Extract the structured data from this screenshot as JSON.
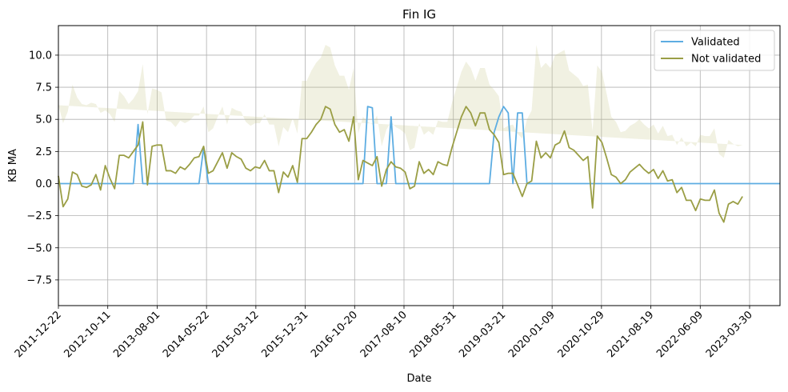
{
  "chart_data": {
    "type": "line",
    "title": "Fin IG",
    "xlabel": "Date",
    "ylabel": "KB MA",
    "ylim": [
      -9.5,
      12.3
    ],
    "grid": true,
    "legend_position": "top-right",
    "x_tick_labels": [
      "2011-12-22",
      "2012-10-11",
      "2013-08-01",
      "2014-05-22",
      "2015-03-12",
      "2015-12-31",
      "2016-10-20",
      "2017-08-10",
      "2018-05-31",
      "2019-03-21",
      "2020-01-09",
      "2020-10-29",
      "2021-08-19",
      "2022-06-09",
      "2023-03-30"
    ],
    "y_ticks": [
      -7.5,
      -5.0,
      -2.5,
      0.0,
      2.5,
      5.0,
      7.5,
      10.0
    ],
    "y_tick_labels": [
      "−7.5",
      "−5.0",
      "−2.5",
      "0.0",
      "2.5",
      "5.0",
      "7.5",
      "10.0"
    ],
    "series": [
      {
        "name": "Validated",
        "color": "#5dade2",
        "values": [
          0,
          0,
          0,
          0,
          0,
          0,
          0,
          0,
          0,
          0,
          0,
          0,
          0,
          0,
          0,
          0,
          0,
          4.6,
          0,
          0,
          0,
          0,
          0,
          0,
          0,
          0,
          0,
          0,
          0,
          0,
          0,
          2.8,
          0,
          0,
          0,
          0,
          0,
          0,
          0,
          0,
          0,
          0,
          0,
          0,
          0,
          0,
          0,
          0,
          0,
          0,
          0,
          0,
          0,
          0,
          0,
          0,
          0,
          0,
          0,
          0,
          0,
          0,
          0,
          0,
          0,
          0,
          6.0,
          5.9,
          0,
          0,
          0,
          5.2,
          0,
          0,
          0,
          0,
          0,
          0,
          0,
          0,
          0,
          0,
          0,
          0,
          0,
          0,
          0,
          0,
          0,
          0,
          0,
          0,
          0,
          4.0,
          5.2,
          6.0,
          5.5,
          0,
          5.5,
          5.5,
          0,
          0,
          0,
          0,
          0,
          0,
          0,
          0,
          0,
          0,
          0,
          0,
          0,
          0,
          0,
          0,
          0,
          0,
          0,
          0,
          0,
          0,
          0,
          0,
          0,
          0,
          0,
          0,
          0,
          0,
          0,
          0,
          0,
          0,
          0,
          0,
          0,
          0,
          0,
          0,
          0,
          0,
          0,
          0,
          0,
          0,
          0,
          0,
          0,
          0,
          0,
          0,
          0,
          0,
          0
        ]
      },
      {
        "name": "Not validated",
        "color": "#9a9e45",
        "values": [
          0.6,
          -1.8,
          -1.2,
          0.9,
          0.7,
          -0.2,
          -0.3,
          -0.1,
          0.7,
          -0.5,
          1.4,
          0.4,
          -0.4,
          2.2,
          2.2,
          2.0,
          2.5,
          3.0,
          4.8,
          -0.1,
          2.9,
          3.0,
          3.0,
          1.0,
          1.0,
          0.8,
          1.3,
          1.1,
          1.5,
          2.0,
          2.1,
          2.9,
          0.8,
          1.0,
          1.7,
          2.4,
          1.2,
          2.4,
          2.1,
          1.9,
          1.2,
          1.0,
          1.3,
          1.2,
          1.8,
          1.0,
          1.0,
          -0.7,
          0.9,
          0.5,
          1.4,
          0.1,
          3.5,
          3.5,
          4.0,
          4.6,
          5.0,
          6.0,
          5.8,
          4.6,
          4.0,
          4.2,
          3.3,
          5.2,
          0.3,
          1.8,
          1.6,
          1.4,
          2.1,
          -0.2,
          1.1,
          1.7,
          1.3,
          1.2,
          0.9,
          -0.4,
          -0.2,
          1.7,
          0.8,
          1.1,
          0.7,
          1.7,
          1.5,
          1.4,
          2.8,
          4.0,
          5.2,
          6.0,
          5.5,
          4.5,
          5.5,
          5.5,
          4.2,
          3.8,
          3.2,
          0.7,
          0.8,
          0.8,
          -0.1,
          -1.0,
          0.0,
          0.2,
          3.3,
          2.0,
          2.4,
          2.0,
          3.0,
          3.2,
          4.1,
          2.8,
          2.6,
          2.2,
          1.8,
          2.1,
          -1.9,
          3.7,
          3.2,
          2.0,
          0.7,
          0.5,
          0.0,
          0.3,
          0.9,
          1.2,
          1.5,
          1.1,
          0.8,
          1.1,
          0.4,
          1.0,
          0.2,
          0.3,
          -0.7,
          -0.3,
          -1.3,
          -1.3,
          -2.1,
          -1.2,
          -1.3,
          -1.3,
          -0.5,
          -2.3,
          -3.0,
          -1.6,
          -1.4,
          -1.6,
          -1.0
        ]
      }
    ],
    "band": {
      "series": "Not validated",
      "color": "#c8c98a",
      "opacity": 0.25,
      "half_width": [
        5.5,
        6.5,
        6.8,
        6.8,
        6.0,
        6.4,
        6.4,
        6.4,
        5.5,
        6.0,
        4.3,
        5.0,
        5.2,
        5.0,
        4.6,
        4.2,
        4.1,
        4.2,
        4.5,
        5.5,
        4.5,
        4.3,
        4.1,
        3.9,
        3.8,
        3.6,
        3.6,
        3.6,
        3.4,
        3.3,
        3.2,
        3.1,
        3.2,
        3.3,
        3.5,
        3.6,
        3.4,
        3.5,
        3.6,
        3.7,
        3.6,
        3.5,
        3.4,
        3.5,
        3.6,
        3.6,
        3.6,
        3.6,
        3.5,
        3.5,
        3.7,
        3.8,
        4.5,
        4.5,
        4.8,
        4.8,
        4.8,
        4.8,
        4.8,
        4.6,
        4.4,
        4.2,
        4.0,
        3.8,
        3.6,
        3.4,
        3.2,
        3.2,
        3.2,
        3.1,
        3.1,
        3.1,
        3.1,
        3.0,
        3.0,
        3.0,
        3.0,
        3.0,
        3.0,
        3.0,
        3.1,
        3.2,
        3.3,
        3.4,
        3.5,
        3.5,
        3.5,
        3.5,
        3.5,
        3.5,
        3.5,
        3.5,
        3.5,
        3.5,
        3.6,
        3.6,
        3.7,
        3.8,
        4.0,
        4.5,
        5.0,
        5.5,
        7.5,
        7.0,
        7.0,
        7.0,
        7.0,
        7.0,
        6.3,
        6.0,
        5.9,
        6.0,
        5.8,
        5.6,
        6.0,
        5.5,
        5.5,
        5.0,
        4.5,
        4.3,
        4.0,
        3.8,
        3.6,
        3.5,
        3.5,
        3.5,
        3.5,
        3.5,
        3.5,
        3.5,
        3.5,
        3.5,
        3.7,
        3.9,
        4.2,
        4.5,
        5.0,
        5.0,
        5.0,
        5.0,
        4.8,
        4.6,
        5.0,
        5.0,
        4.5,
        4.5,
        4.0,
        4.0
      ]
    }
  }
}
